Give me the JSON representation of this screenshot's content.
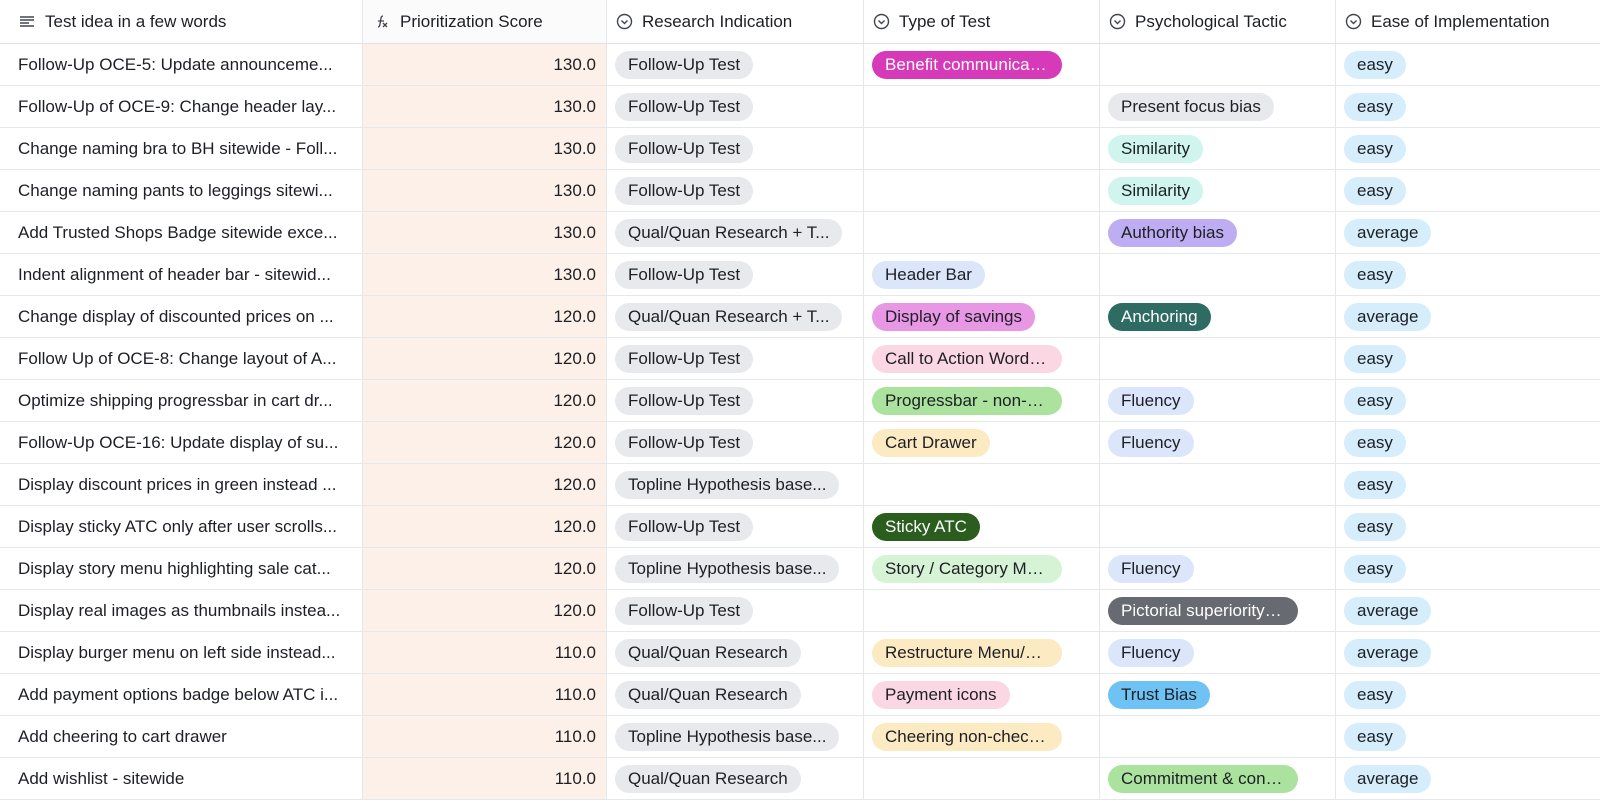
{
  "columns": [
    {
      "label": "Test idea in a few words",
      "icon": "long-text-icon"
    },
    {
      "label": "Prioritization Score",
      "icon": "formula-icon"
    },
    {
      "label": "Research Indication",
      "icon": "single-select-icon"
    },
    {
      "label": "Type of Test",
      "icon": "single-select-icon"
    },
    {
      "label": "Psychological Tactic",
      "icon": "single-select-icon"
    },
    {
      "label": "Ease of Implementation",
      "icon": "single-select-icon"
    }
  ],
  "colors": {
    "score_bg": "#fdf0e8",
    "gray": "#e8e9ec",
    "magenta": "#d73ab8",
    "light_blue": "#dbe6fb",
    "light_teal": "#d0f4ee",
    "lavender": "#bfadf3",
    "teal_dark": "#2d6b63",
    "light_pink": "#fad7e2",
    "light_green": "#d7f3d6",
    "green": "#abe39e",
    "sand": "#fbeac2",
    "dark_green": "#2b5e1e",
    "orchid": "#e897e5",
    "dark_gray": "#676a71",
    "sky": "#6ec2f4",
    "ease_blue": "#d6eefb"
  },
  "rows": [
    {
      "idea": "Follow-Up OCE-5: Update announceme...",
      "score": "130.0",
      "research": "Follow-Up Test",
      "type": {
        "label": "Benefit communicatio...",
        "bg": "#d73ab8",
        "fg": "#ffffff"
      },
      "tactic": null,
      "ease": "easy"
    },
    {
      "idea": "Follow-Up of OCE-9: Change header lay...",
      "score": "130.0",
      "research": "Follow-Up Test",
      "type": null,
      "tactic": {
        "label": "Present focus bias",
        "bg": "#e8e9ec",
        "fg": "#1d1f25"
      },
      "ease": "easy"
    },
    {
      "idea": "Change naming bra to BH sitewide - Foll...",
      "score": "130.0",
      "research": "Follow-Up Test",
      "type": null,
      "tactic": {
        "label": "Similarity",
        "bg": "#d0f4ee",
        "fg": "#1d1f25"
      },
      "ease": "easy"
    },
    {
      "idea": "Change naming pants to leggings sitewi...",
      "score": "130.0",
      "research": "Follow-Up Test",
      "type": null,
      "tactic": {
        "label": "Similarity",
        "bg": "#d0f4ee",
        "fg": "#1d1f25"
      },
      "ease": "easy"
    },
    {
      "idea": "Add Trusted Shops Badge sitewide exce...",
      "score": "130.0",
      "research": "Qual/Quan Research + T...",
      "type": null,
      "tactic": {
        "label": "Authority bias",
        "bg": "#bfadf3",
        "fg": "#1d1f25"
      },
      "ease": "average"
    },
    {
      "idea": "Indent alignment of header bar - sitewid...",
      "score": "130.0",
      "research": "Follow-Up Test",
      "type": {
        "label": "Header Bar",
        "bg": "#dbe6fb",
        "fg": "#1d1f25"
      },
      "tactic": null,
      "ease": "easy"
    },
    {
      "idea": "Change display of discounted prices on ...",
      "score": "120.0",
      "research": "Qual/Quan Research + T...",
      "type": {
        "label": "Display of savings",
        "bg": "#e897e5",
        "fg": "#1d1f25"
      },
      "tactic": {
        "label": "Anchoring",
        "bg": "#2d6b63",
        "fg": "#ffffff"
      },
      "ease": "average"
    },
    {
      "idea": "Follow Up of OCE-8: Change layout of A...",
      "score": "120.0",
      "research": "Follow-Up Test",
      "type": {
        "label": "Call to Action Wording",
        "bg": "#fad7e2",
        "fg": "#1d1f25"
      },
      "tactic": null,
      "ease": "easy"
    },
    {
      "idea": "Optimize shipping progressbar in cart dr...",
      "score": "120.0",
      "research": "Follow-Up Test",
      "type": {
        "label": "Progressbar - non-ch...",
        "bg": "#abe39e",
        "fg": "#1d1f25"
      },
      "tactic": {
        "label": "Fluency",
        "bg": "#dbe6fb",
        "fg": "#1d1f25"
      },
      "ease": "easy"
    },
    {
      "idea": "Follow-Up OCE-16: Update display of su...",
      "score": "120.0",
      "research": "Follow-Up Test",
      "type": {
        "label": "Cart Drawer",
        "bg": "#fbeac2",
        "fg": "#1d1f25"
      },
      "tactic": {
        "label": "Fluency",
        "bg": "#dbe6fb",
        "fg": "#1d1f25"
      },
      "ease": "easy"
    },
    {
      "idea": "Display discount prices in green instead ...",
      "score": "120.0",
      "research": "Topline Hypothesis base...",
      "type": null,
      "tactic": null,
      "ease": "easy"
    },
    {
      "idea": "Display sticky ATC only after user scrolls...",
      "score": "120.0",
      "research": "Follow-Up Test",
      "type": {
        "label": "Sticky ATC",
        "bg": "#2b5e1e",
        "fg": "#ffffff"
      },
      "tactic": null,
      "ease": "easy"
    },
    {
      "idea": "Display story menu highlighting sale cat...",
      "score": "120.0",
      "research": "Topline Hypothesis base...",
      "type": {
        "label": "Story / Category Menu",
        "bg": "#d7f3d6",
        "fg": "#1d1f25"
      },
      "tactic": {
        "label": "Fluency",
        "bg": "#dbe6fb",
        "fg": "#1d1f25"
      },
      "ease": "easy"
    },
    {
      "idea": "Display real images as thumbnails instea...",
      "score": "120.0",
      "research": "Follow-Up Test",
      "type": null,
      "tactic": {
        "label": "Pictorial superiority ef...",
        "bg": "#676a71",
        "fg": "#ffffff"
      },
      "ease": "average"
    },
    {
      "idea": "Display burger menu on left side instead...",
      "score": "110.0",
      "research": "Qual/Quan Research",
      "type": {
        "label": "Restructure Menu/Nav...",
        "bg": "#fbeac2",
        "fg": "#1d1f25"
      },
      "tactic": {
        "label": "Fluency",
        "bg": "#dbe6fb",
        "fg": "#1d1f25"
      },
      "ease": "average"
    },
    {
      "idea": "Add payment options badge below ATC i...",
      "score": "110.0",
      "research": "Qual/Quan Research",
      "type": {
        "label": "Payment icons",
        "bg": "#fad7e2",
        "fg": "#1d1f25"
      },
      "tactic": {
        "label": "Trust Bias",
        "bg": "#6ec2f4",
        "fg": "#1d1f25"
      },
      "ease": "easy"
    },
    {
      "idea": "Add cheering to cart drawer",
      "score": "110.0",
      "research": "Topline Hypothesis base...",
      "type": {
        "label": "Cheering non-checkout",
        "bg": "#fbeac2",
        "fg": "#1d1f25"
      },
      "tactic": null,
      "ease": "easy"
    },
    {
      "idea": "Add wishlist - sitewide",
      "score": "110.0",
      "research": "Qual/Quan Research",
      "type": null,
      "tactic": {
        "label": "Commitment & consis...",
        "bg": "#abe39e",
        "fg": "#1d1f25"
      },
      "ease": "average"
    }
  ]
}
